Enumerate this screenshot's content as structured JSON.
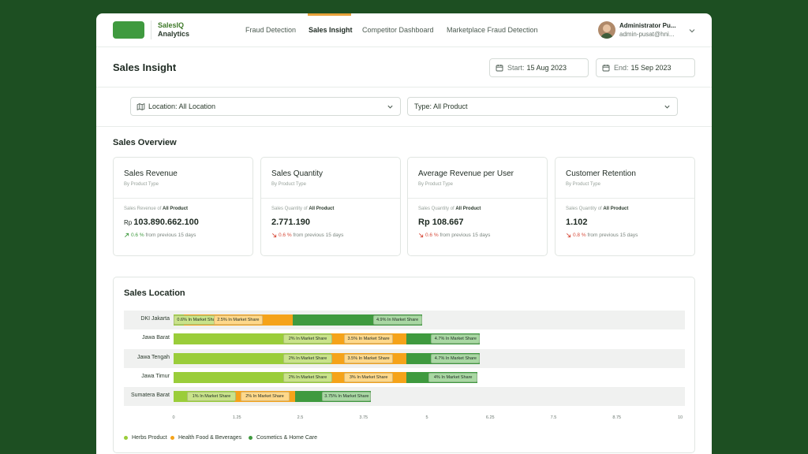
{
  "brand": {
    "line1": "SalesIQ",
    "line2": "Analytics"
  },
  "nav": [
    {
      "label": "Fraud Detection"
    },
    {
      "label": "Sales Insight",
      "active": true
    },
    {
      "label": "Competitor Dashboard"
    },
    {
      "label": "Marketplace Fraud Detection"
    }
  ],
  "user": {
    "name": "Administrator Pu...",
    "email": "admin-pusat@hni..."
  },
  "header": {
    "title": "Sales Insight",
    "start_label": "Start:",
    "start_value": "15 Aug 2023",
    "end_label": "End:",
    "end_value": "15 Sep 2023"
  },
  "filters": {
    "location": "Location: All Location",
    "type": "Type: All Product"
  },
  "overview": {
    "title": "Sales Overview",
    "cards": [
      {
        "title": "Sales Revenue",
        "subtitle": "By Product Type",
        "meta_prefix": "Sales Revenue of",
        "meta_value": "All Product",
        "currency": "Rp",
        "value": "103.890.662.100",
        "trend_direction": "up",
        "trend_value": "0.6 %",
        "trend_text": "from previous 15 days"
      },
      {
        "title": "Sales Quantity",
        "subtitle": "By Product Type",
        "meta_prefix": "Sales Quantity of",
        "meta_value": "All Product",
        "currency": "",
        "value": "2.771.190",
        "trend_direction": "down",
        "trend_value": "0.6 %",
        "trend_text": "from previous 15 days"
      },
      {
        "title": "Average Revenue  per User",
        "subtitle": "By Product Type",
        "meta_prefix": "Sales Quantity of",
        "meta_value": "All Product",
        "currency": "",
        "value": "Rp 108.667",
        "trend_direction": "down",
        "trend_value": "0.6 %",
        "trend_text": "from previous 15 days"
      },
      {
        "title": "Customer Retention",
        "subtitle": "By Product Type",
        "meta_prefix": "Sales Quantity of",
        "meta_value": "All Product",
        "currency": "",
        "value": "1.102",
        "trend_direction": "down",
        "trend_value": "0.8 %",
        "trend_text": "from previous 15 days"
      }
    ]
  },
  "location": {
    "title": "Sales Location"
  },
  "colors": {
    "herbs": "#9acd3a",
    "health": "#f5a31a",
    "cosmetics": "#3f9a3f",
    "brand": "#3f9a3f",
    "accent": "#e8a23a"
  },
  "chart_data": {
    "type": "bar",
    "orientation": "horizontal",
    "stacked": true,
    "categories": [
      "DKI Jakarta",
      "Jawa Barat",
      "Jawa Tengah",
      "Jawa Timur",
      "Sumatera Barat"
    ],
    "series": [
      {
        "name": "Herbs Product",
        "values": [
          0.2,
          3.1,
          3.1,
          3.1,
          1.2
        ],
        "labels": [
          "0.6% In Market Share",
          "2% In Market Share",
          "2% In Market Share",
          "2% In Market Share",
          "1% In Market Share"
        ]
      },
      {
        "name": "Health Food & Beverages",
        "values": [
          2.15,
          1.5,
          1.5,
          1.5,
          1.2
        ],
        "labels": [
          "2.5% In Market Share",
          "3.5% In Market Share",
          "3.5% In Market Share",
          "3% In Market Share",
          "2% In Market Share"
        ]
      },
      {
        "name": "Cosmetics & Home Care",
        "values": [
          2.55,
          1.45,
          1.45,
          1.4,
          1.5
        ],
        "labels": [
          "4.9% In Market Share",
          "4.7% In Market Share",
          "4.7% In Market Share",
          "4% In Market Share",
          "3.75% In Market Share"
        ]
      }
    ],
    "x_ticks": [
      "0",
      "1.25",
      "2.5",
      "3.75",
      "5",
      "6.25",
      "7.5",
      "8.75",
      "10"
    ],
    "xlim": [
      0,
      10
    ],
    "legend_position": "bottom-left",
    "grid": false
  }
}
